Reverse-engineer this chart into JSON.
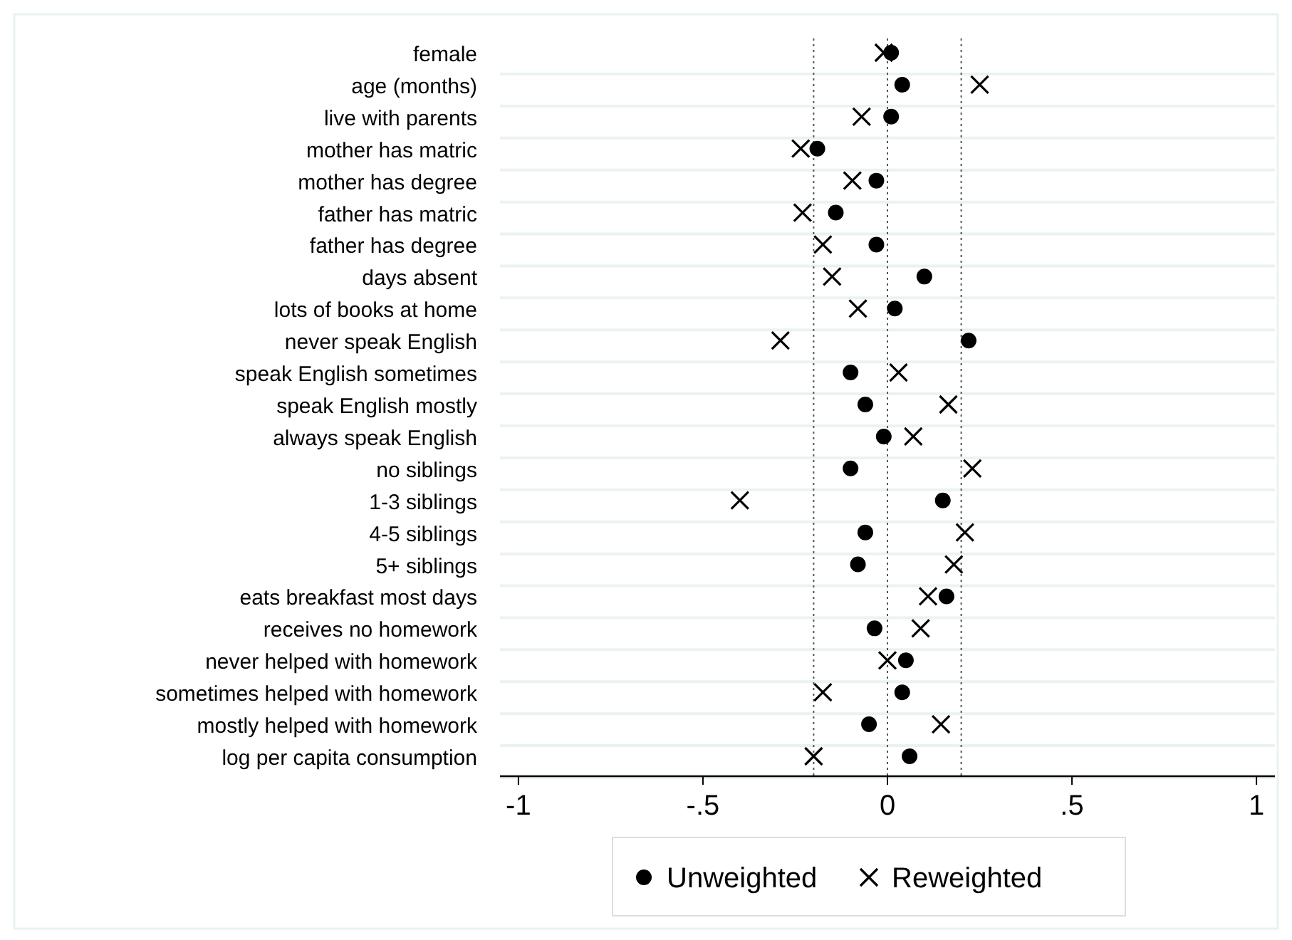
{
  "chart_data": {
    "type": "scatter",
    "orientation": "horizontal",
    "categories": [
      "female",
      "age (months)",
      "live with parents",
      "mother has matric",
      "mother has degree",
      "father has matric",
      "father has degree",
      "days absent",
      "lots of books at home",
      "never speak English",
      "speak English sometimes",
      "speak English mostly",
      "always speak English",
      "no siblings",
      "1-3 siblings",
      "4-5 siblings",
      "5+ siblings",
      "eats breakfast most days",
      "receives no homework",
      "never helped with homework",
      "sometimes helped with homework",
      "mostly helped with homework",
      "log per capita consumption"
    ],
    "series": [
      {
        "name": "Unweighted",
        "color": "#000000",
        "marker": "circle",
        "values": [
          0.01,
          0.04,
          0.01,
          -0.19,
          -0.03,
          -0.14,
          -0.03,
          0.1,
          0.02,
          0.22,
          -0.1,
          -0.06,
          -0.01,
          -0.1,
          0.15,
          -0.06,
          -0.08,
          0.16,
          -0.035,
          0.05,
          0.04,
          -0.05,
          0.06
        ]
      },
      {
        "name": "Reweighted",
        "color": "#000000",
        "marker": "cross",
        "values": [
          -0.01,
          0.25,
          -0.07,
          -0.235,
          -0.095,
          -0.23,
          -0.175,
          -0.15,
          -0.08,
          -0.29,
          0.03,
          0.165,
          0.07,
          0.23,
          -0.4,
          0.21,
          0.18,
          0.11,
          0.09,
          0.0,
          -0.175,
          0.145,
          -0.2
        ]
      }
    ],
    "xlim": [
      -1.05,
      1.05
    ],
    "xticks": [
      {
        "value": -1,
        "label": "-1"
      },
      {
        "value": -0.5,
        "label": "-.5"
      },
      0,
      {
        "value": 0.5,
        "label": ".5"
      },
      1
    ],
    "ref_lines": [
      {
        "axis": "x",
        "value": -0.2,
        "line_style": "dotted",
        "color": "#555555"
      },
      {
        "axis": "x",
        "value": 0,
        "line_style": "dotted",
        "color": "#555555"
      },
      {
        "axis": "x",
        "value": 0.2,
        "line_style": "dotted",
        "color": "#555555"
      }
    ],
    "grid": "y",
    "legend": "bottom"
  }
}
